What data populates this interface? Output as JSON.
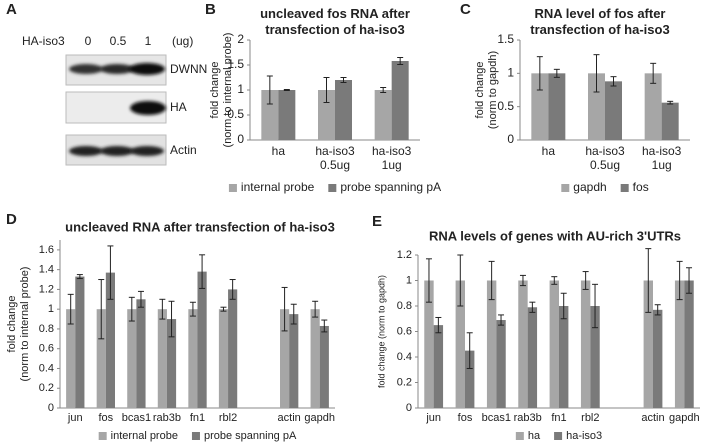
{
  "blot": {
    "label": "A",
    "treatment_label": "HA-iso3",
    "doses": [
      "0",
      "0.5",
      "1"
    ],
    "unit": "(ug)",
    "bands": [
      "DWNN",
      "HA",
      "Actin"
    ]
  },
  "chart_data": [
    {
      "type": "bar",
      "label": "B",
      "title": "uncleaved fos RNA after\ntransfection of ha-iso3",
      "ylabel": "fold change\n(norm to internal probe)",
      "categories": [
        "ha",
        "ha-iso3\n0.5ug",
        "ha-iso3\n1ug"
      ],
      "series": [
        {
          "name": "internal probe",
          "color": "#a6a6a6",
          "values": [
            1,
            1,
            1
          ],
          "errors": [
            0.28,
            0.25,
            0.05
          ]
        },
        {
          "name": "probe spanning pA",
          "color": "#7a7a7a",
          "values": [
            1.0,
            1.2,
            1.58
          ],
          "errors": [
            0.01,
            0.05,
            0.07
          ]
        }
      ],
      "ylim": [
        0,
        2
      ],
      "yticks": [
        0,
        0.5,
        1,
        1.5,
        2
      ]
    },
    {
      "type": "bar",
      "label": "C",
      "title": "RNA level of fos after\ntransfection of ha-iso3",
      "ylabel": "fold change\n(norm to gapdh)",
      "categories": [
        "ha",
        "ha-iso3\n0.5ug",
        "ha-iso3\n1ug"
      ],
      "series": [
        {
          "name": "gapdh",
          "color": "#a6a6a6",
          "values": [
            1,
            1,
            1
          ],
          "errors": [
            0.25,
            0.28,
            0.15
          ]
        },
        {
          "name": "fos",
          "color": "#7a7a7a",
          "values": [
            1,
            0.88,
            0.56
          ],
          "errors": [
            0.06,
            0.07,
            0.02
          ]
        }
      ],
      "ylim": [
        0,
        1.5
      ],
      "yticks": [
        0,
        0.5,
        1,
        1.5
      ]
    },
    {
      "type": "bar",
      "label": "D",
      "title": "uncleaved RNA after transfection of ha-iso3",
      "ylabel": "fold change\n(norm to internal probe)",
      "categories": [
        "jun",
        "fos",
        "bcas1",
        "rab3b",
        "fn1",
        "rbl2",
        null,
        "actin",
        "gapdh"
      ],
      "series": [
        {
          "name": "internal probe",
          "color": "#a6a6a6",
          "values": [
            1,
            1,
            1,
            1,
            1,
            1,
            null,
            1,
            1
          ],
          "errors": [
            0.15,
            0.3,
            0.12,
            0.1,
            0.07,
            0.02,
            null,
            0.22,
            0.08
          ]
        },
        {
          "name": "probe spanning pA",
          "color": "#7a7a7a",
          "values": [
            1.33,
            1.37,
            1.1,
            0.9,
            1.38,
            1.2,
            null,
            0.95,
            0.83
          ],
          "errors": [
            0.02,
            0.27,
            0.08,
            0.18,
            0.17,
            0.1,
            null,
            0.1,
            0.06
          ]
        }
      ],
      "ylim": [
        0,
        1.7
      ],
      "yticks": [
        0,
        0.2,
        0.4,
        0.6,
        0.8,
        1,
        1.2,
        1.4,
        1.6
      ]
    },
    {
      "type": "bar",
      "label": "E",
      "title": "RNA levels of genes with AU-rich 3'UTRs",
      "ylabel": "fold change (norm to gapdh)",
      "categories": [
        "jun",
        "fos",
        "bcas1",
        "rab3b",
        "fn1",
        "rbl2",
        null,
        "actin",
        "gapdh"
      ],
      "series": [
        {
          "name": "ha",
          "color": "#a6a6a6",
          "values": [
            1,
            1,
            1,
            1,
            1,
            1,
            null,
            1,
            1
          ],
          "errors": [
            0.17,
            0.2,
            0.15,
            0.04,
            0.03,
            0.07,
            null,
            0.25,
            0.15
          ]
        },
        {
          "name": "ha-iso3",
          "color": "#7a7a7a",
          "values": [
            0.65,
            0.45,
            0.69,
            0.79,
            0.8,
            0.8,
            null,
            0.77,
            1.0
          ],
          "errors": [
            0.06,
            0.14,
            0.04,
            0.04,
            0.1,
            0.17,
            null,
            0.04,
            0.1
          ]
        }
      ],
      "ylim": [
        0,
        1.2
      ],
      "yticks": [
        0,
        0.2,
        0.4,
        0.6,
        0.8,
        1,
        1.2
      ]
    }
  ]
}
